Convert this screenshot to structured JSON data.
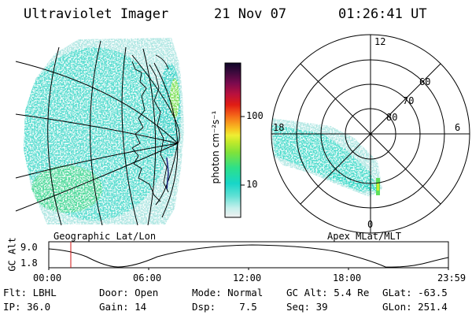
{
  "header": {
    "instrument": "Ultraviolet Imager",
    "date": "21 Nov 07",
    "time": "01:26:41 UT"
  },
  "panels": {
    "left_caption": "Geographic Lat/Lon",
    "right_caption": "Apex MLat/MLT"
  },
  "colorbar": {
    "unit_label": "photon cm⁻²s⁻¹",
    "scale": "log",
    "ticks": [
      "100",
      "10"
    ],
    "colors": [
      "#f0f0f0",
      "#c6f0ec",
      "#5fe0d4",
      "#17d6c8",
      "#2de08a",
      "#7fe23a",
      "#c4ea2a",
      "#eeee33",
      "#f7c622",
      "#f7911c",
      "#f25a18",
      "#e01c14",
      "#b8103e",
      "#7a0a4e",
      "#3c0a3c",
      "#0e0628"
    ]
  },
  "polar": {
    "mlt_labels": [
      "12",
      "18",
      "6",
      "0"
    ],
    "mlat_labels": [
      "60",
      "70",
      "80"
    ]
  },
  "altitude_plot": {
    "ylabel": "GC Alt",
    "yticks": [
      "9.0",
      "1.8"
    ],
    "xticks": [
      "00:00",
      "06:00",
      "12:00",
      "18:00",
      "23:59"
    ]
  },
  "status": {
    "row1": [
      {
        "text": "Flt: LBHL"
      },
      {
        "text": "Door: Open"
      },
      {
        "text": "Mode: Normal"
      },
      {
        "text": "GC Alt: 5.4 Re"
      },
      {
        "text": "GLat: -63.5"
      }
    ],
    "row2": [
      {
        "text": "IP: 36.0"
      },
      {
        "text": "Gain: 14"
      },
      {
        "text": "Dsp:    7.5"
      },
      {
        "text": "Seq: 39"
      },
      {
        "text": "GLon: 251.4"
      }
    ]
  }
}
